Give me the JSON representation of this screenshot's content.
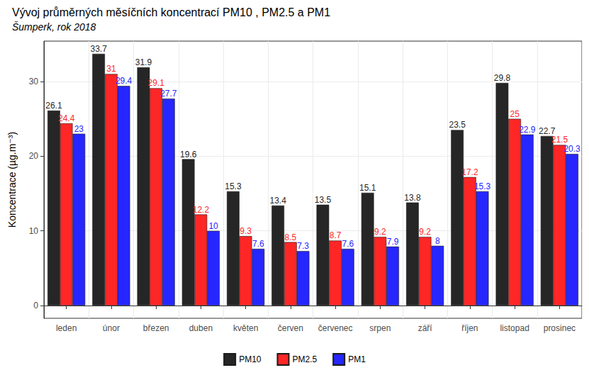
{
  "chart_data": {
    "type": "bar",
    "title": "Vývoj průměrných měsíčních koncentrací PM10 , PM2.5 a PM1",
    "subtitle": "Šumperk, rok 2018",
    "y_label": "Koncentrace (µg.m⁻³)",
    "categories": [
      "leden",
      "únor",
      "březen",
      "duben",
      "květen",
      "červen",
      "červenec",
      "srpen",
      "září",
      "říjen",
      "listopad",
      "prosinec"
    ],
    "series": [
      {
        "name": "PM10",
        "color": "#262626",
        "values": [
          26.1,
          33.7,
          31.9,
          19.6,
          15.3,
          13.4,
          13.5,
          15.1,
          13.8,
          23.5,
          29.8,
          22.7
        ]
      },
      {
        "name": "PM2.5",
        "color": "#ff2626",
        "values": [
          24.4,
          31,
          29.1,
          12.2,
          9.3,
          8.5,
          8.7,
          9.2,
          9.2,
          17.2,
          25,
          21.5
        ]
      },
      {
        "name": "PM1",
        "color": "#2626ff",
        "values": [
          23,
          29.4,
          27.7,
          10,
          7.6,
          7.3,
          7.6,
          7.9,
          8,
          15.3,
          22.9,
          20.3
        ]
      }
    ],
    "ylim": [
      -1.7,
      35.4
    ],
    "yticks": [
      0,
      10,
      20,
      30
    ],
    "grid": true,
    "legend": "bottom",
    "data_labels": true
  }
}
